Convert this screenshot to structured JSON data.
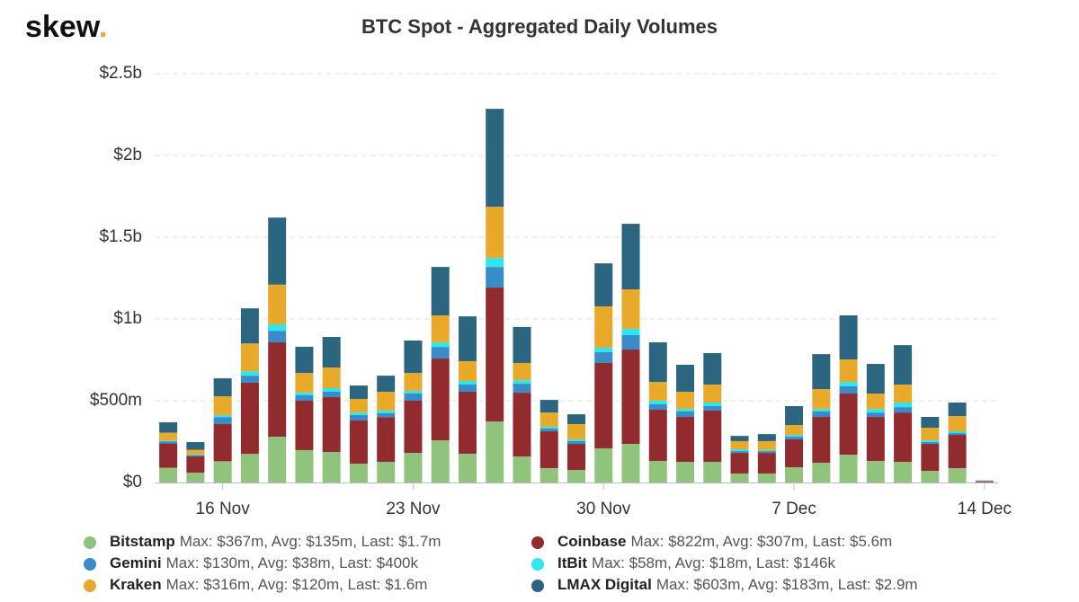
{
  "brand": {
    "name": "skew",
    "dot": "."
  },
  "chart_data": {
    "type": "stacked_bar",
    "title": "BTC Spot - Aggregated Daily Volumes",
    "categories": [
      null,
      null,
      "16 Nov",
      null,
      null,
      null,
      null,
      null,
      null,
      "23 Nov",
      null,
      null,
      null,
      null,
      null,
      null,
      "30 Nov",
      null,
      null,
      null,
      null,
      null,
      null,
      "7 Dec",
      null,
      null,
      null,
      null,
      null,
      null,
      "14 Dec"
    ],
    "ylim": [
      0,
      2500
    ],
    "yticks": [
      {
        "value": 0,
        "label": "$0"
      },
      {
        "value": 500,
        "label": "$500m"
      },
      {
        "value": 1000,
        "label": "$1b"
      },
      {
        "value": 1500,
        "label": "$1.5b"
      },
      {
        "value": 2000,
        "label": "$2b"
      },
      {
        "value": 2500,
        "label": "$2.5b"
      }
    ],
    "grid": true,
    "series": [
      {
        "name": "Bitstamp",
        "summary": "Max: $367m, Avg: $135m, Last: $1.7m",
        "color": "#90c47c",
        "values": [
          90,
          60,
          130,
          175,
          280,
          198,
          187,
          115,
          126,
          181,
          258,
          176,
          373,
          159,
          88,
          77,
          209,
          236,
          132,
          126,
          126,
          55,
          55,
          93,
          121,
          170,
          132,
          126,
          71,
          88,
          1.7
        ]
      },
      {
        "name": "Coinbase",
        "summary": "Max: $822m, Avg: $307m, Last: $5.6m",
        "color": "#922b2f",
        "values": [
          150,
          100,
          227,
          435,
          577,
          302,
          335,
          264,
          274,
          319,
          500,
          379,
          819,
          390,
          225,
          159,
          522,
          577,
          313,
          275,
          314,
          126,
          126,
          171,
          280,
          374,
          269,
          302,
          165,
          203,
          5.6
        ]
      },
      {
        "name": "Gemini",
        "summary": "Max: $130m, Avg: $38m, Last: $400k",
        "color": "#3a8cc8",
        "values": [
          12,
          8,
          43,
          43,
          71,
          33,
          33,
          33,
          23,
          44,
          71,
          44,
          126,
          55,
          17,
          17,
          66,
          88,
          33,
          33,
          27,
          11,
          11,
          16,
          33,
          44,
          27,
          33,
          11,
          11,
          0.4
        ]
      },
      {
        "name": "ItBit",
        "summary": "Max: $58m, Avg: $18m, Last: $146k",
        "color": "#2ee6ee",
        "values": [
          5,
          4,
          12,
          27,
          39,
          17,
          22,
          16,
          17,
          16,
          28,
          22,
          55,
          22,
          11,
          11,
          27,
          39,
          22,
          16,
          22,
          11,
          6,
          11,
          16,
          27,
          22,
          28,
          11,
          11,
          0.146
        ]
      },
      {
        "name": "Kraken",
        "summary": "Max: $316m, Avg: $120m, Last: $1.6m",
        "color": "#e9aa2b",
        "values": [
          48,
          28,
          115,
          170,
          243,
          120,
          126,
          83,
          115,
          110,
          165,
          121,
          313,
          105,
          87,
          93,
          253,
          241,
          115,
          105,
          110,
          50,
          55,
          60,
          121,
          137,
          94,
          110,
          77,
          93,
          1.6
        ]
      },
      {
        "name": "LMAX Digital",
        "summary": "Max: $603m, Avg: $183m, Last: $2.9m",
        "color": "#2b6580",
        "values": [
          63,
          47,
          110,
          215,
          410,
          160,
          187,
          82,
          98,
          198,
          296,
          274,
          599,
          220,
          77,
          60,
          263,
          401,
          242,
          165,
          192,
          32,
          43,
          116,
          214,
          270,
          181,
          241,
          66,
          83,
          2.9
        ]
      }
    ]
  }
}
